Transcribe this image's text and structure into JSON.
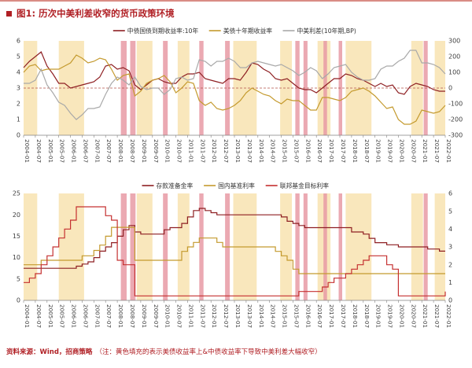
{
  "header": {
    "title": "图1: 历次中美利差收窄的货币政策环境"
  },
  "footer": {
    "source": "资料来源：Wind，招商策略",
    "note": "（注：黄色填充的表示美债收益率上&中债收益率下导致中美利差大幅收窄）"
  },
  "theme": {
    "accent": "#b01f24",
    "band_yellow": "#f8e3b0",
    "band_pink": "#e89aa4",
    "axis_text": "#404040"
  },
  "chart_data": [
    {
      "type": "line",
      "panel": "top",
      "x_start": 2004,
      "x_step": 0.25,
      "x_tick_step": 0.5,
      "x_tick_labels": [
        "2004-01",
        "2004-07",
        "2005-01",
        "2005-07",
        "2006-01",
        "2006-07",
        "2007-01",
        "2007-07",
        "2008-01",
        "2008-07",
        "2009-01",
        "2009-07",
        "2010-01",
        "2010-07",
        "2011-01",
        "2011-07",
        "2012-01",
        "2012-07",
        "2013-01",
        "2013-07",
        "2014-01",
        "2014-07",
        "2015-01",
        "2015-07",
        "2016-01",
        "2016-07",
        "2017-01",
        "2017-07",
        "2018-01",
        "2018-07",
        "2019-01",
        "2019-07",
        "2020-01",
        "2020-07",
        "2021-01",
        "2021-07",
        "2022-01"
      ],
      "left_axis": {
        "min": 0,
        "max": 6,
        "step": 1
      },
      "right_axis": {
        "min": -300,
        "max": 300,
        "step": 100
      },
      "ref_line": {
        "axis": "right",
        "value": 0,
        "color": "#b2524a"
      },
      "bands": {
        "yellow": {
          "color": "#f8e3b0",
          "ranges": [
            [
              2004.0,
              2004.58
            ],
            [
              2005.5,
              2006.58
            ],
            [
              2008.83,
              2009.5
            ],
            [
              2010.58,
              2011.08
            ],
            [
              2012.95,
              2013.95
            ],
            [
              2014.95,
              2015.45
            ],
            [
              2016.55,
              2017.1
            ],
            [
              2017.75,
              2018.85
            ],
            [
              2020.55,
              2021.05
            ],
            [
              2021.55,
              2022.0
            ]
          ]
        },
        "pink": {
          "color": "#e89aa4",
          "ranges": [
            [
              2008.15,
              2008.4
            ],
            [
              2008.55,
              2008.78
            ],
            [
              2009.95,
              2010.15
            ],
            [
              2011.5,
              2011.68
            ],
            [
              2012.6,
              2012.8
            ],
            [
              2015.6,
              2015.78
            ],
            [
              2015.95,
              2016.12
            ],
            [
              2016.8,
              2016.95
            ],
            [
              2017.45,
              2017.6
            ],
            [
              2021.08,
              2021.25
            ]
          ]
        }
      },
      "series": [
        {
          "name": "中债国债到期收益率:10年",
          "axis": "left",
          "step": false,
          "color": "#8e1f22",
          "values": [
            4.3,
            4.7,
            5.0,
            5.3,
            4.4,
            3.9,
            3.3,
            3.3,
            3.0,
            3.1,
            3.2,
            3.3,
            3.4,
            3.7,
            4.4,
            4.5,
            4.2,
            4.3,
            4.1,
            3.2,
            2.9,
            3.2,
            3.5,
            3.6,
            3.4,
            3.3,
            3.3,
            3.7,
            3.9,
            3.9,
            4.0,
            3.6,
            3.5,
            3.4,
            3.3,
            3.6,
            3.6,
            3.5,
            4.0,
            4.6,
            4.5,
            4.2,
            4.0,
            3.6,
            3.5,
            3.6,
            3.3,
            3.0,
            2.9,
            2.9,
            2.7,
            3.0,
            3.3,
            3.6,
            3.6,
            3.9,
            3.8,
            3.6,
            3.5,
            3.3,
            3.1,
            3.3,
            3.1,
            3.2,
            2.7,
            2.6,
            3.1,
            3.3,
            3.2,
            3.1,
            2.9,
            2.8,
            2.8
          ]
        },
        {
          "name": "美债十年期收益率",
          "axis": "left",
          "step": false,
          "color": "#c49a2e",
          "values": [
            4.0,
            4.4,
            4.5,
            4.1,
            4.2,
            4.2,
            4.2,
            4.4,
            4.6,
            5.1,
            4.9,
            4.6,
            4.7,
            4.9,
            4.8,
            4.2,
            3.5,
            3.8,
            3.9,
            2.5,
            2.8,
            3.3,
            3.5,
            3.6,
            3.8,
            3.4,
            2.7,
            3.0,
            3.4,
            3.3,
            2.2,
            1.9,
            2.1,
            1.7,
            1.6,
            1.7,
            1.9,
            2.2,
            2.7,
            3.0,
            2.8,
            2.6,
            2.5,
            2.2,
            2.0,
            2.3,
            2.2,
            2.2,
            1.9,
            1.6,
            1.6,
            2.4,
            2.4,
            2.3,
            2.2,
            2.4,
            2.8,
            2.9,
            3.0,
            2.8,
            2.5,
            2.1,
            1.7,
            1.8,
            1.0,
            0.7,
            0.7,
            0.9,
            1.6,
            1.5,
            1.4,
            1.5,
            1.9
          ]
        },
        {
          "name": "中美利差(10年期,BP)",
          "axis": "right",
          "step": false,
          "color": "#a9a9a9",
          "values": [
            30,
            30,
            50,
            120,
            20,
            -30,
            -90,
            -110,
            -160,
            -200,
            -170,
            -130,
            -130,
            -120,
            -40,
            30,
            70,
            50,
            20,
            70,
            10,
            -10,
            0,
            0,
            -40,
            -10,
            60,
            70,
            50,
            60,
            180,
            170,
            140,
            170,
            170,
            190,
            170,
            130,
            130,
            160,
            170,
            160,
            150,
            140,
            150,
            130,
            110,
            80,
            100,
            130,
            110,
            60,
            90,
            130,
            140,
            150,
            100,
            70,
            50,
            50,
            60,
            120,
            140,
            140,
            170,
            190,
            240,
            240,
            160,
            160,
            150,
            130,
            90
          ]
        }
      ]
    },
    {
      "type": "line",
      "panel": "bottom",
      "x_start": 2004,
      "x_step": 0.25,
      "x_tick_step": 0.5,
      "x_tick_labels": [
        "2004-01",
        "2004-07",
        "2005-01",
        "2005-07",
        "2006-01",
        "2006-07",
        "2007-01",
        "2007-07",
        "2008-01",
        "2008-07",
        "2009-01",
        "2009-07",
        "2010-01",
        "2010-07",
        "2011-01",
        "2011-07",
        "2012-01",
        "2012-07",
        "2013-01",
        "2013-07",
        "2014-01",
        "2014-07",
        "2015-01",
        "2015-07",
        "2016-01",
        "2016-07",
        "2017-01",
        "2017-07",
        "2018-01",
        "2018-07",
        "2019-01",
        "2019-07",
        "2020-01",
        "2020-07",
        "2021-01",
        "2021-07",
        "2022-01"
      ],
      "left_axis": {
        "min": 0,
        "max": 25,
        "step": 5
      },
      "right_axis": {
        "min": 0,
        "max": 6,
        "step": 1
      },
      "bands": {
        "yellow": {
          "color": "#f8e3b0",
          "ranges": [
            [
              2004.0,
              2004.58
            ],
            [
              2005.5,
              2006.58
            ],
            [
              2008.83,
              2009.5
            ],
            [
              2010.58,
              2011.08
            ],
            [
              2012.95,
              2013.95
            ],
            [
              2014.95,
              2015.45
            ],
            [
              2016.55,
              2017.1
            ],
            [
              2017.75,
              2018.85
            ],
            [
              2020.55,
              2021.05
            ],
            [
              2021.55,
              2022.0
            ]
          ]
        },
        "pink": {
          "color": "#e89aa4",
          "ranges": [
            [
              2008.15,
              2008.4
            ],
            [
              2008.55,
              2008.78
            ],
            [
              2009.95,
              2010.15
            ],
            [
              2011.5,
              2011.68
            ],
            [
              2012.6,
              2012.8
            ],
            [
              2015.6,
              2015.78
            ],
            [
              2015.95,
              2016.12
            ],
            [
              2016.8,
              2016.95
            ],
            [
              2017.45,
              2017.6
            ],
            [
              2021.08,
              2021.25
            ]
          ]
        }
      },
      "series": [
        {
          "name": "存款准备金率",
          "axis": "left",
          "step": true,
          "color": "#8e1f22",
          "values": [
            7.5,
            7.5,
            7.5,
            7.5,
            7.5,
            7.5,
            7.5,
            7.5,
            7.5,
            8.0,
            8.5,
            9.0,
            10.0,
            11.5,
            12.5,
            13.5,
            15.0,
            16.5,
            17.5,
            16.0,
            15.5,
            15.5,
            15.5,
            15.5,
            16.5,
            17.0,
            17.0,
            18.0,
            19.5,
            21.0,
            21.5,
            21.0,
            20.5,
            20.0,
            20.0,
            20.0,
            20.0,
            20.0,
            20.0,
            20.0,
            20.0,
            20.0,
            20.0,
            20.0,
            19.5,
            18.5,
            18.0,
            17.5,
            17.0,
            17.0,
            17.0,
            17.0,
            17.0,
            17.0,
            17.0,
            17.0,
            16.0,
            16.0,
            15.5,
            14.5,
            13.5,
            13.5,
            13.0,
            13.0,
            12.5,
            12.5,
            12.5,
            12.5,
            12.5,
            12.0,
            12.0,
            11.5,
            11.5
          ]
        },
        {
          "name": "国内基准利率",
          "axis": "right",
          "step": true,
          "color": "#c49a2e",
          "values": [
            2.0,
            2.0,
            2.0,
            2.25,
            2.25,
            2.25,
            2.25,
            2.25,
            2.25,
            2.25,
            2.5,
            2.5,
            2.8,
            3.1,
            3.6,
            4.1,
            4.1,
            4.1,
            4.1,
            2.25,
            2.25,
            2.25,
            2.25,
            2.25,
            2.25,
            2.25,
            2.25,
            2.75,
            3.0,
            3.25,
            3.5,
            3.5,
            3.5,
            3.25,
            3.0,
            3.0,
            3.0,
            3.0,
            3.0,
            3.0,
            3.0,
            3.0,
            3.0,
            2.75,
            2.5,
            2.25,
            1.75,
            1.5,
            1.5,
            1.5,
            1.5,
            1.5,
            1.5,
            1.5,
            1.5,
            1.5,
            1.5,
            1.5,
            1.5,
            1.5,
            1.5,
            1.5,
            1.5,
            1.5,
            1.5,
            1.5,
            1.5,
            1.5,
            1.5,
            1.5,
            1.5,
            1.5,
            1.5
          ]
        },
        {
          "name": "联邦基金目标利率",
          "axis": "right",
          "step": true,
          "color": "#c53030",
          "values": [
            1.0,
            1.25,
            1.5,
            2.0,
            2.5,
            3.0,
            3.5,
            4.0,
            4.5,
            5.25,
            5.25,
            5.25,
            5.25,
            5.25,
            4.75,
            4.5,
            2.25,
            2.0,
            2.0,
            0.25,
            0.25,
            0.25,
            0.25,
            0.25,
            0.25,
            0.25,
            0.25,
            0.25,
            0.25,
            0.25,
            0.25,
            0.25,
            0.25,
            0.25,
            0.25,
            0.25,
            0.25,
            0.25,
            0.25,
            0.25,
            0.25,
            0.25,
            0.25,
            0.25,
            0.25,
            0.25,
            0.25,
            0.5,
            0.5,
            0.5,
            0.5,
            0.75,
            1.0,
            1.25,
            1.25,
            1.5,
            1.75,
            2.0,
            2.25,
            2.5,
            2.5,
            2.5,
            2.0,
            1.75,
            0.25,
            0.25,
            0.25,
            0.25,
            0.25,
            0.25,
            0.25,
            0.25,
            0.5
          ]
        }
      ]
    }
  ]
}
